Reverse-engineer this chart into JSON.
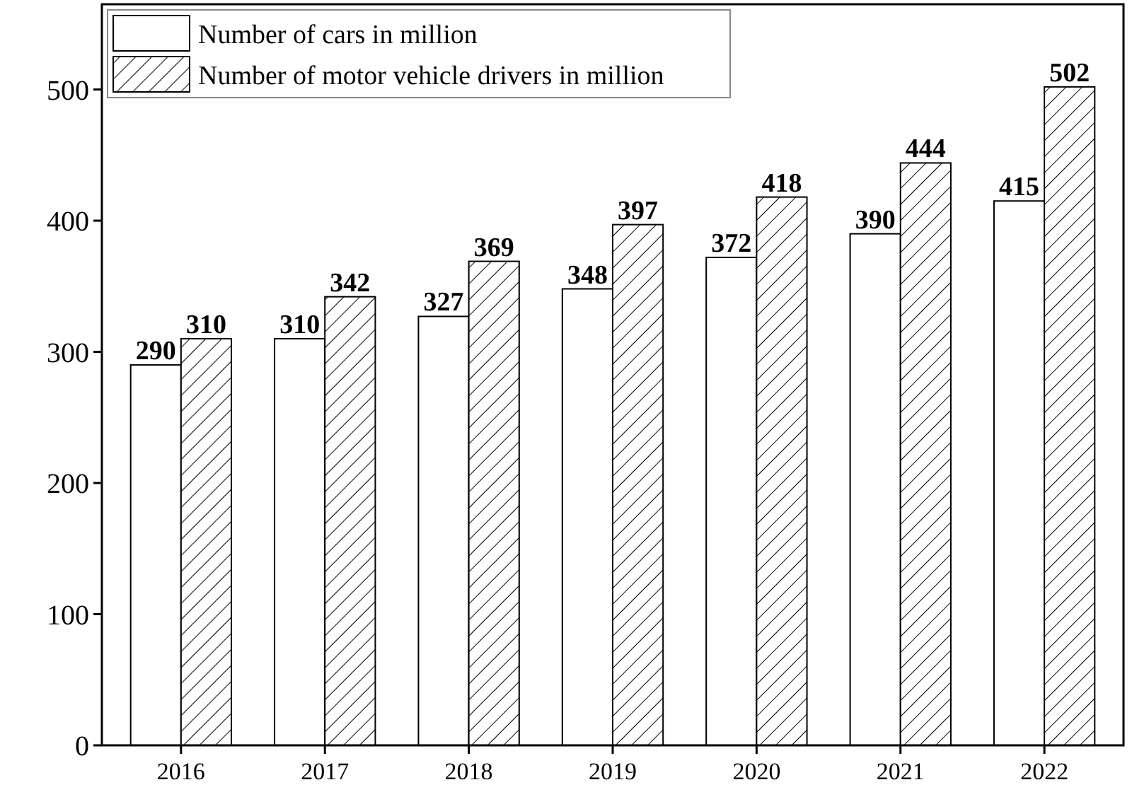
{
  "chart_data": {
    "type": "bar",
    "categories": [
      "2016",
      "2017",
      "2018",
      "2019",
      "2020",
      "2021",
      "2022"
    ],
    "series": [
      {
        "name": "Number of cars in million",
        "color": "#ffffff",
        "values": [
          290,
          310,
          327,
          348,
          372,
          390,
          415
        ]
      },
      {
        "name": "Number of motor vehicle drivers in million",
        "color": "#000000",
        "values": [
          310,
          342,
          369,
          397,
          418,
          444,
          502
        ]
      }
    ],
    "ylim": [
      0,
      565
    ],
    "yticks": [
      0,
      100,
      200,
      300,
      400,
      500
    ],
    "grid": false,
    "legend": "top left",
    "data_labels": true
  }
}
